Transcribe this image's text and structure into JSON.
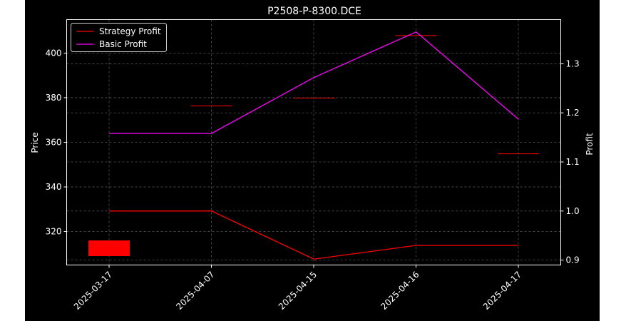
{
  "chart_data": {
    "type": "line",
    "title": "P2508-P-8300.DCE",
    "xlabel": "",
    "ylabel": "Price",
    "y2label": "Profit",
    "categories": [
      "2025-03-17",
      "2025-04-07",
      "2025-04-15",
      "2025-04-16",
      "2025-04-17"
    ],
    "ylim": [
      305,
      415
    ],
    "y_ticks": [
      320,
      340,
      360,
      380,
      400
    ],
    "y2lim": [
      0.89,
      1.39
    ],
    "y2_ticks": [
      0.9,
      1.0,
      1.1,
      1.2,
      1.3
    ],
    "grid": true,
    "legend_position": "top-left",
    "candles": [
      {
        "x": "2025-03-17",
        "open": 316,
        "close": 309,
        "color": "#ff0000"
      },
      {
        "x": "2025-04-07",
        "open": 376.5,
        "close": 376.5,
        "color": "#ff0000"
      },
      {
        "x": "2025-04-15",
        "open": 380,
        "close": 380,
        "color": "#ff0000"
      },
      {
        "x": "2025-04-16",
        "open": 408,
        "close": 408,
        "color": "#ff0000"
      },
      {
        "x": "2025-04-17",
        "open": 355,
        "close": 355,
        "color": "#ff0000"
      }
    ],
    "series": [
      {
        "name": "Strategy Profit",
        "axis": "right",
        "color": "#ff0000",
        "values": [
          1.0,
          1.0,
          0.902,
          0.93,
          0.93
        ]
      },
      {
        "name": "Basic Profit",
        "axis": "right",
        "color": "#ff00ff",
        "values": [
          1.158,
          1.158,
          1.272,
          1.365,
          1.187
        ]
      }
    ]
  }
}
